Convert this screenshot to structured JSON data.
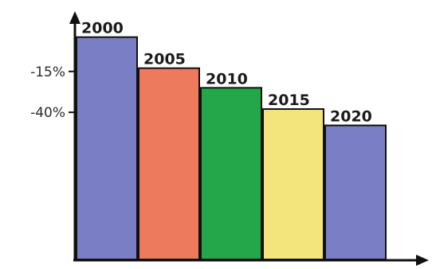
{
  "chart_data": {
    "type": "bar",
    "categories": [
      "2000",
      "2005",
      "2010",
      "2015",
      "2020"
    ],
    "values": [
      6,
      -13,
      -25,
      -38,
      -48
    ],
    "colors": [
      "#7a7ec4",
      "#ee7a5e",
      "#22a84a",
      "#f3e47c",
      "#7a7ec4"
    ],
    "y_ticks": [
      {
        "value": -15,
        "label": "-15%"
      },
      {
        "value": -40,
        "label": "-40%"
      }
    ],
    "title": "",
    "xlabel": "",
    "ylabel": "",
    "ylim": [
      -130,
      18
    ],
    "grid": false,
    "legend": "none"
  }
}
